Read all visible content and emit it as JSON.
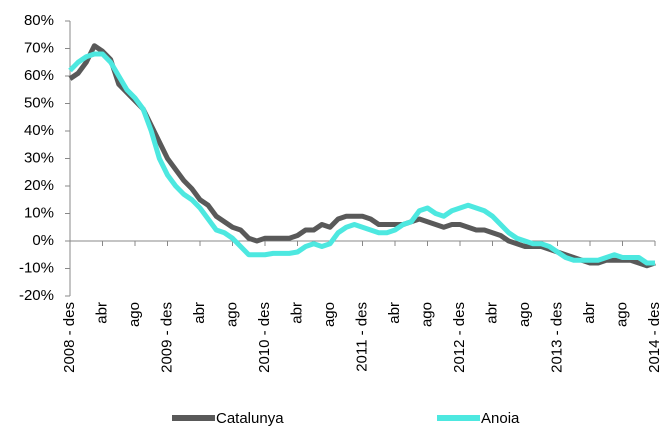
{
  "chart_data": {
    "type": "line",
    "categories": [
      "2008 - des",
      null,
      null,
      null,
      "abr",
      null,
      null,
      null,
      "ago",
      null,
      null,
      null,
      "2009 - des",
      null,
      null,
      null,
      "abr",
      null,
      null,
      null,
      "ago",
      null,
      null,
      null,
      "2010 - des",
      null,
      null,
      null,
      "abr",
      null,
      null,
      null,
      "ago",
      null,
      null,
      null,
      "2011 - des",
      null,
      null,
      null,
      "abr",
      null,
      null,
      null,
      "ago",
      null,
      null,
      null,
      "2012 - des",
      null,
      null,
      null,
      "abr",
      null,
      null,
      null,
      "ago",
      null,
      null,
      null,
      "2013 - des",
      null,
      null,
      null,
      "abr",
      null,
      null,
      null,
      "ago",
      null,
      null,
      null,
      "2014 - des"
    ],
    "series": [
      {
        "name": "Catalunya",
        "color": "#595959",
        "values": [
          59,
          61,
          65,
          71,
          69,
          66,
          57,
          54,
          51,
          48,
          42,
          36,
          30,
          26,
          22,
          19,
          15,
          13,
          9,
          7,
          5,
          4,
          1,
          0,
          1,
          1,
          1,
          1,
          2,
          4,
          4,
          6,
          5,
          8,
          9,
          9,
          9,
          8,
          6,
          6,
          6,
          6,
          7,
          8,
          7,
          6,
          5,
          6,
          6,
          5,
          4,
          4,
          3,
          2,
          0,
          -1,
          -2,
          -2,
          -2,
          -3,
          -4,
          -5,
          -6,
          -7,
          -8,
          -8,
          -7,
          -7,
          -7,
          -7,
          -8,
          -9,
          -8
        ]
      },
      {
        "name": "Anoia",
        "color": "#4de8e0",
        "values": [
          62,
          65,
          67,
          68,
          68,
          65,
          60,
          55,
          52,
          48,
          40,
          30,
          24,
          20,
          17,
          15,
          12,
          8,
          4,
          3,
          1,
          -2,
          -5,
          -5,
          -5,
          -4.5,
          -4.5,
          -4.5,
          -4,
          -2,
          -1,
          -2,
          -1,
          3,
          5,
          6,
          5,
          4,
          3,
          3,
          4,
          6,
          7,
          11,
          12,
          10,
          9,
          11,
          12,
          13,
          12,
          11,
          9,
          6,
          3,
          1,
          0,
          -1,
          -1,
          -2,
          -4,
          -6,
          -7,
          -7,
          -7,
          -7,
          -6,
          -5,
          -6,
          -6,
          -6,
          -8,
          -8
        ]
      }
    ],
    "ylim": [
      -20,
      80
    ],
    "yticks": [
      {
        "value": -20,
        "label": "-20%"
      },
      {
        "value": -10,
        "label": "-10%"
      },
      {
        "value": 0,
        "label": "0%"
      },
      {
        "value": 10,
        "label": "10%"
      },
      {
        "value": 20,
        "label": "20%"
      },
      {
        "value": 30,
        "label": "30%"
      },
      {
        "value": 40,
        "label": "40%"
      },
      {
        "value": 50,
        "label": "50%"
      },
      {
        "value": 60,
        "label": "60%"
      },
      {
        "value": 70,
        "label": "70%"
      },
      {
        "value": 80,
        "label": "80%"
      }
    ],
    "grid": false,
    "legend": "bottom"
  }
}
